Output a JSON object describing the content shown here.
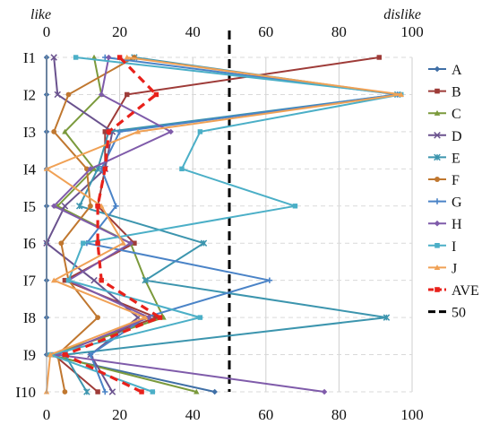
{
  "chart_data": {
    "type": "line",
    "orientation": "horizontal-values",
    "top_left_label": "like",
    "top_right_label": "dislike",
    "xlim": [
      0,
      100
    ],
    "x_ticks": [
      0,
      20,
      40,
      60,
      80,
      100
    ],
    "categories": [
      "I1",
      "I2",
      "I3",
      "I4",
      "I5",
      "I6",
      "I7",
      "I8",
      "I9",
      "I10"
    ],
    "grid": true,
    "legend_position": "right",
    "reference_line": {
      "name": "50",
      "value": 50,
      "color": "#000000"
    },
    "series": [
      {
        "name": "A",
        "color": "#3F6FA6",
        "marker": "diamond",
        "values": [
          0,
          0,
          0,
          0,
          0,
          0,
          0,
          0,
          0,
          46
        ]
      },
      {
        "name": "B",
        "color": "#9E3B38",
        "marker": "square",
        "values": [
          91,
          22,
          16,
          16,
          14,
          24,
          5,
          30,
          2,
          14
        ]
      },
      {
        "name": "C",
        "color": "#7B9A3C",
        "marker": "triangle",
        "values": [
          13,
          15,
          5,
          13,
          3,
          23,
          27,
          32,
          1,
          41
        ]
      },
      {
        "name": "D",
        "color": "#6A528E",
        "marker": "x",
        "values": [
          2,
          3,
          18,
          16,
          5,
          0,
          13,
          25,
          12,
          18
        ]
      },
      {
        "name": "E",
        "color": "#3C95AE",
        "marker": "star",
        "values": [
          24,
          96,
          17,
          14,
          9,
          43,
          27,
          93,
          5,
          11
        ]
      },
      {
        "name": "F",
        "color": "#C0772F",
        "marker": "circle",
        "values": [
          24,
          6,
          2,
          11,
          12,
          4,
          6,
          14,
          3,
          5
        ]
      },
      {
        "name": "G",
        "color": "#4A83C7",
        "marker": "plus",
        "values": [
          16,
          96,
          20,
          15,
          19,
          11,
          61,
          27,
          12,
          16
        ]
      },
      {
        "name": "H",
        "color": "#7F5BAA",
        "marker": "diamond",
        "values": [
          17,
          15,
          34,
          12,
          2,
          23,
          6,
          28,
          3,
          76
        ]
      },
      {
        "name": "I",
        "color": "#4BAFC7",
        "marker": "square",
        "values": [
          8,
          97,
          42,
          37,
          68,
          10,
          6,
          42,
          1,
          29
        ]
      },
      {
        "name": "J",
        "color": "#F0A155",
        "marker": "triangle",
        "values": [
          22,
          97,
          25,
          0,
          15,
          21,
          2,
          27,
          1,
          0
        ]
      },
      {
        "name": "AVE",
        "color": "#E8211B",
        "marker": "square",
        "dashed": true,
        "values": [
          20,
          30,
          17,
          16,
          14,
          14,
          15,
          31,
          5,
          26
        ]
      }
    ]
  }
}
